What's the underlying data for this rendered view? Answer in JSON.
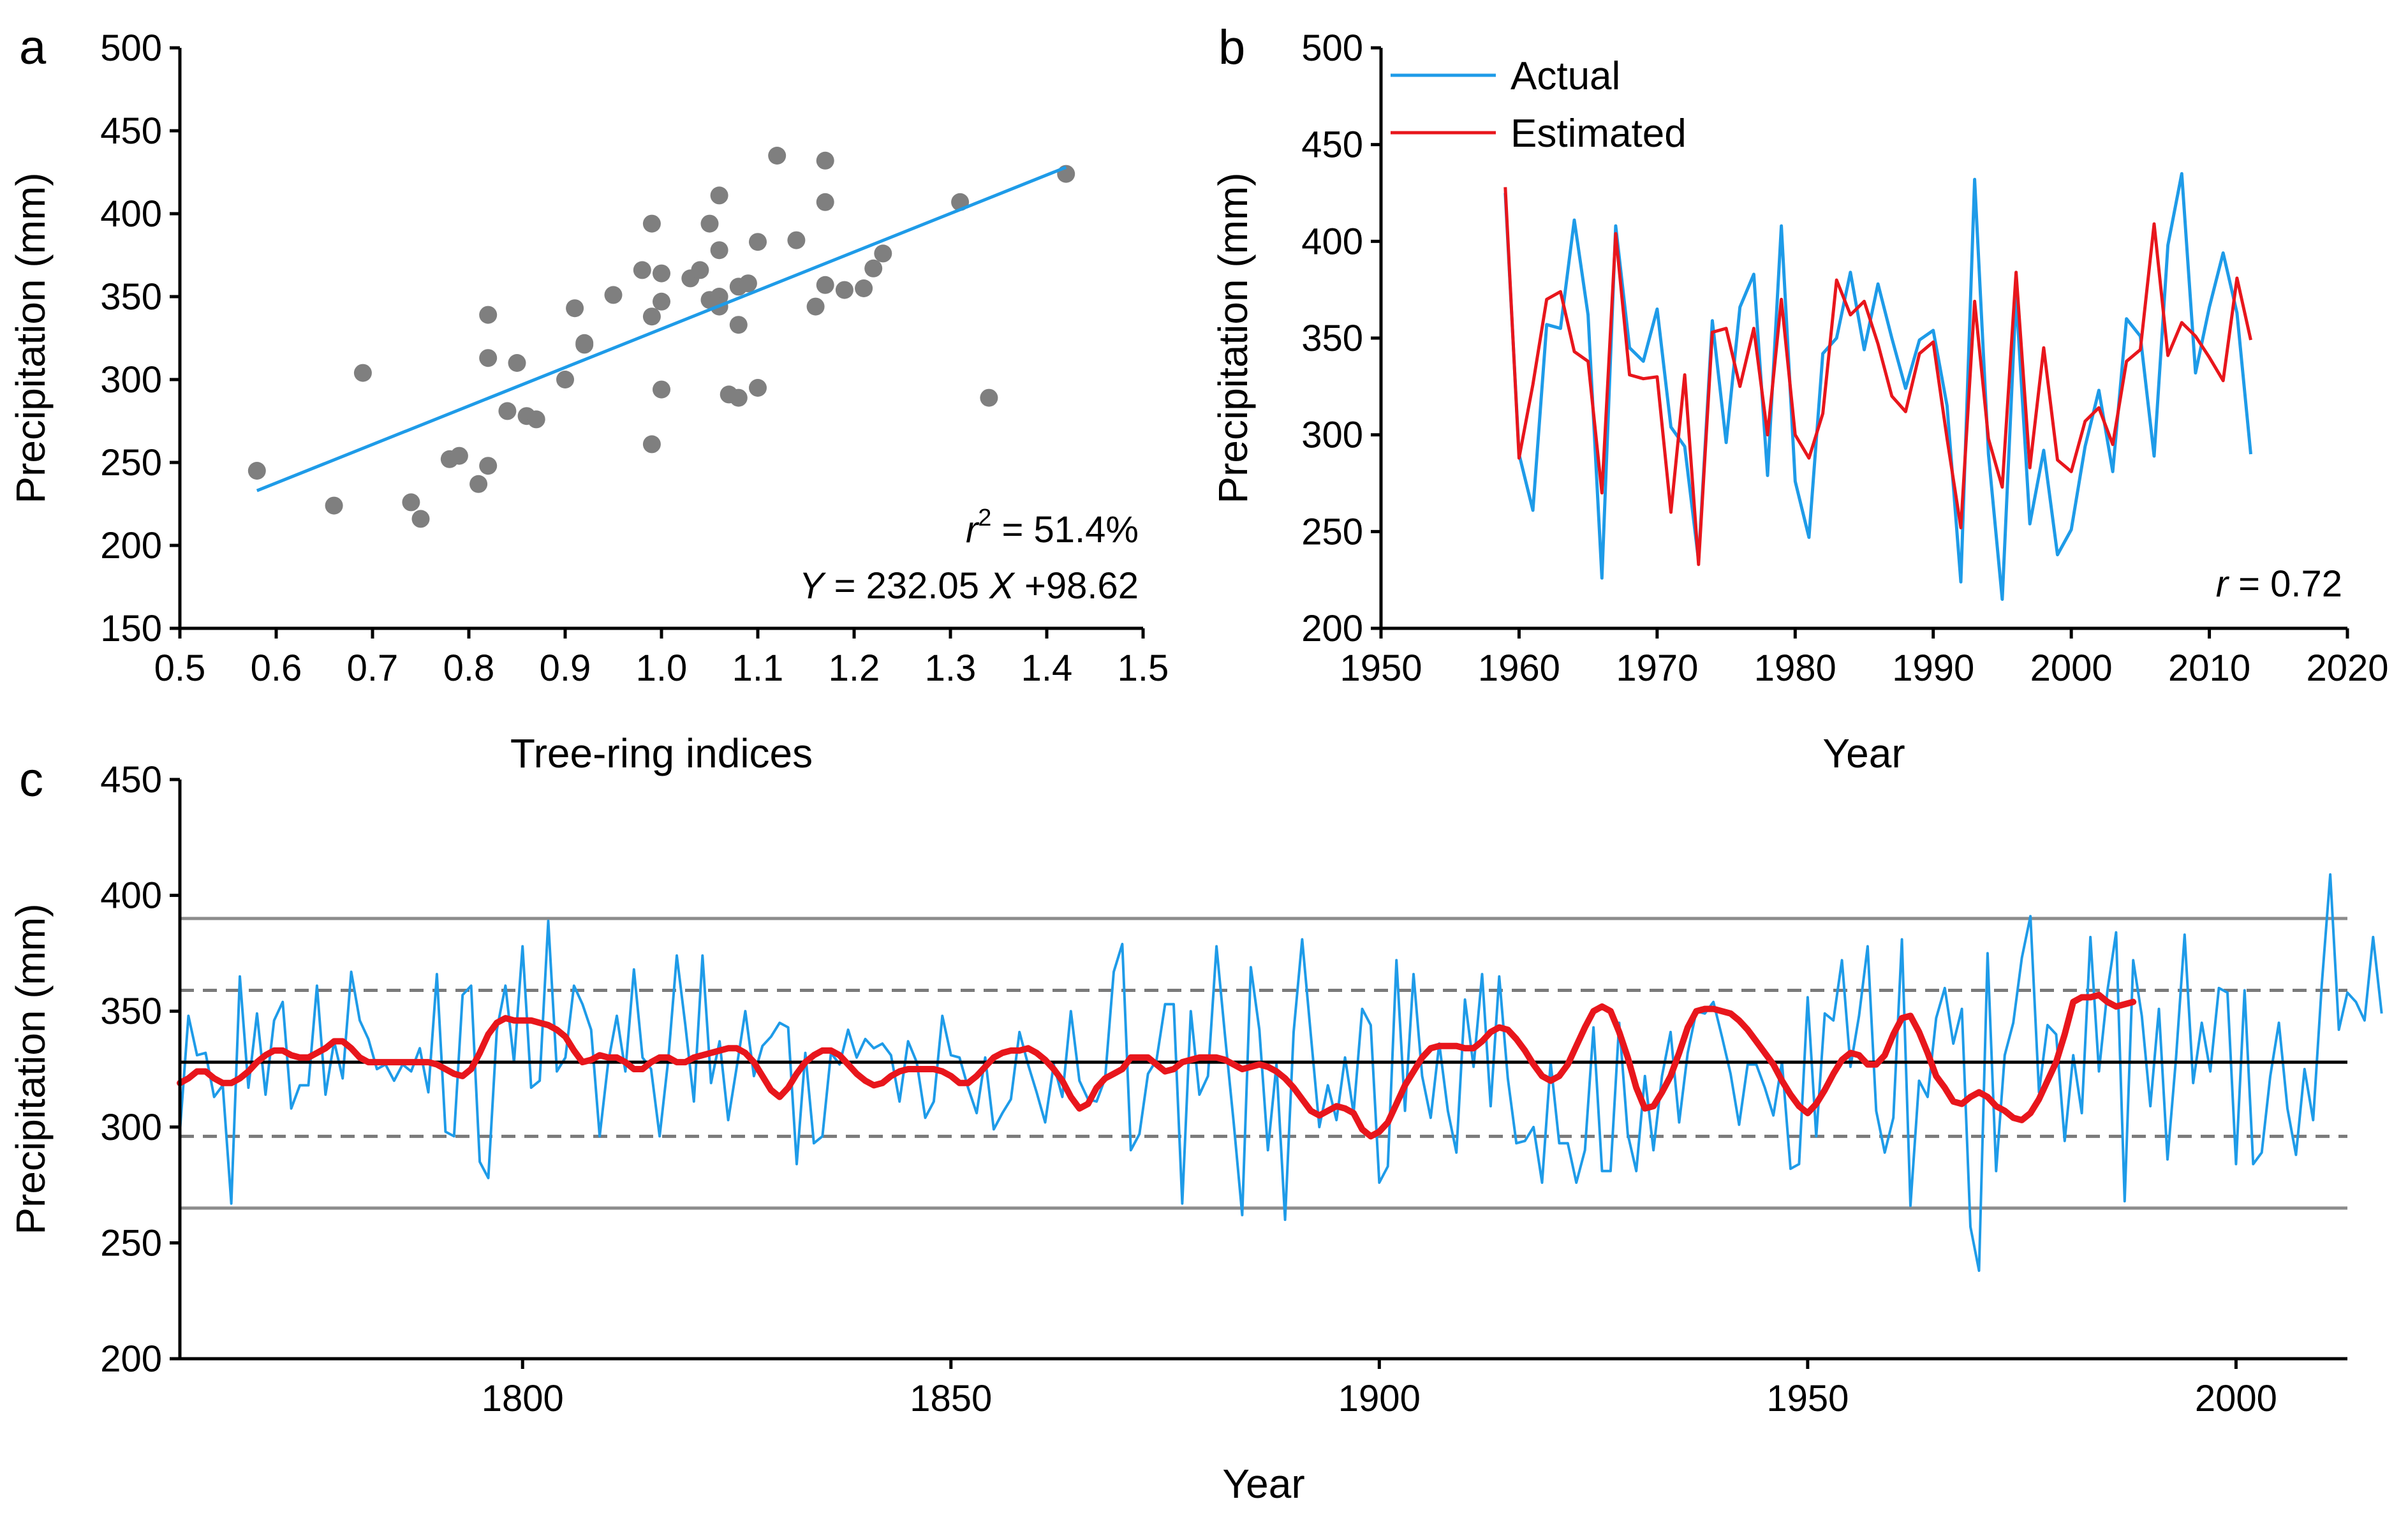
{
  "colors": {
    "actual": "#1E9BE8",
    "estimated": "#E8161C",
    "scatter": "#7F7F7F",
    "axis": "#000000",
    "ref_solid": "#8C8C8C",
    "ref_dashed": "#7A7A7A",
    "mean": "#000000"
  },
  "panels": {
    "a": {
      "letter": "a",
      "xlabel": "Tree-ring indices",
      "ylabel": "Precipitation (mm)",
      "r2_label": "r",
      "r2_sup": "2",
      "r2_value": " = 51.4%",
      "eq_y": "Y",
      "eq_mid": " = 232.05 ",
      "eq_x": "X",
      "eq_end": " +98.62"
    },
    "b": {
      "letter": "b",
      "xlabel": "Year",
      "ylabel": "Precipitation (mm)",
      "r_label": "r",
      "r_value": " = 0.72",
      "legend_actual": "Actual",
      "legend_estimated": "Estimated"
    },
    "c": {
      "letter": "c",
      "xlabel": "Year",
      "ylabel": "Precipitation (mm)"
    }
  },
  "chart_data": [
    {
      "id": "a",
      "type": "scatter",
      "xlabel": "Tree-ring indices",
      "ylabel": "Precipitation (mm)",
      "xlim": [
        0.5,
        1.5
      ],
      "ylim": [
        150,
        500
      ],
      "xticks": [
        "0.5",
        "0.6",
        "0.7",
        "0.8",
        "0.9",
        "1.0",
        "1.1",
        "1.2",
        "1.3",
        "1.4",
        "1.5"
      ],
      "yticks": [
        "150",
        "200",
        "250",
        "300",
        "350",
        "400",
        "450",
        "500"
      ],
      "points": [
        [
          0.58,
          245
        ],
        [
          0.66,
          224
        ],
        [
          0.69,
          304
        ],
        [
          0.74,
          226
        ],
        [
          0.75,
          216
        ],
        [
          0.78,
          252
        ],
        [
          0.79,
          254
        ],
        [
          0.81,
          237
        ],
        [
          0.82,
          248
        ],
        [
          0.82,
          339
        ],
        [
          0.82,
          313
        ],
        [
          0.84,
          281
        ],
        [
          0.85,
          310
        ],
        [
          0.86,
          278
        ],
        [
          0.87,
          276
        ],
        [
          0.9,
          300
        ],
        [
          0.91,
          343
        ],
        [
          0.92,
          321
        ],
        [
          0.92,
          322
        ],
        [
          0.95,
          351
        ],
        [
          0.98,
          366
        ],
        [
          0.99,
          394
        ],
        [
          0.99,
          338
        ],
        [
          1.0,
          364
        ],
        [
          1.0,
          347
        ],
        [
          0.99,
          261
        ],
        [
          1.0,
          294
        ],
        [
          1.03,
          361
        ],
        [
          1.04,
          366
        ],
        [
          1.05,
          394
        ],
        [
          1.05,
          348
        ],
        [
          1.06,
          350
        ],
        [
          1.06,
          344
        ],
        [
          1.06,
          411
        ],
        [
          1.06,
          378
        ],
        [
          1.07,
          291
        ],
        [
          1.08,
          356
        ],
        [
          1.08,
          289
        ],
        [
          1.08,
          333
        ],
        [
          1.09,
          358
        ],
        [
          1.1,
          383
        ],
        [
          1.1,
          295
        ],
        [
          1.12,
          435
        ],
        [
          1.14,
          384
        ],
        [
          1.16,
          344
        ],
        [
          1.17,
          432
        ],
        [
          1.17,
          407
        ],
        [
          1.17,
          357
        ],
        [
          1.19,
          354
        ],
        [
          1.21,
          355
        ],
        [
          1.22,
          367
        ],
        [
          1.23,
          376
        ],
        [
          1.31,
          407
        ],
        [
          1.34,
          289
        ],
        [
          1.42,
          424
        ]
      ],
      "fit_line": {
        "x": [
          0.58,
          1.42
        ],
        "y": [
          233,
          428
        ]
      },
      "annotations": [
        "r2 = 51.4%",
        "Y = 232.05 X +98.62"
      ]
    },
    {
      "id": "b",
      "type": "line",
      "xlabel": "Year",
      "ylabel": "Precipitation (mm)",
      "xlim": [
        1950,
        2020
      ],
      "ylim": [
        200,
        500
      ],
      "xticks": [
        "1950",
        "1960",
        "1970",
        "1980",
        "1990",
        "2000",
        "2010",
        "2020"
      ],
      "yticks": [
        "200",
        "250",
        "300",
        "350",
        "400",
        "450",
        "500"
      ],
      "x": [
        1959,
        1960,
        1961,
        1962,
        1963,
        1964,
        1965,
        1966,
        1967,
        1968,
        1969,
        1970,
        1971,
        1972,
        1973,
        1974,
        1975,
        1976,
        1977,
        1978,
        1979,
        1980,
        1981,
        1982,
        1983,
        1984,
        1985,
        1986,
        1987,
        1988,
        1989,
        1990,
        1991,
        1992,
        1993,
        1994,
        1995,
        1996,
        1997,
        1998,
        1999,
        2000,
        2001,
        2002,
        2003,
        2004,
        2005,
        2006,
        2007,
        2008,
        2009,
        2010,
        2011,
        2012,
        2013
      ],
      "series": [
        {
          "name": "Actual",
          "values": [
            425,
            290,
            261,
            357,
            355,
            411,
            362,
            226,
            408,
            345,
            338,
            365,
            304,
            294,
            235,
            359,
            296,
            366,
            383,
            279,
            408,
            276,
            247,
            342,
            350,
            384,
            344,
            378,
            350,
            324,
            349,
            354,
            315,
            224,
            432,
            290,
            215,
            372,
            254,
            292,
            238,
            251,
            294,
            323,
            281,
            360,
            351,
            289,
            398,
            435,
            332,
            366,
            394,
            363,
            290
          ]
        },
        {
          "name": "Estimated",
          "values": [
            428,
            288,
            326,
            370,
            374,
            343,
            338,
            270,
            404,
            331,
            329,
            330,
            260,
            331,
            233,
            353,
            355,
            325,
            355,
            300,
            370,
            300,
            288,
            311,
            380,
            362,
            369,
            347,
            320,
            312,
            342,
            348,
            298,
            252,
            369,
            298,
            273,
            384,
            283,
            345,
            287,
            281,
            307,
            314,
            295,
            338,
            344,
            409,
            341,
            358,
            351,
            340,
            328,
            381,
            349
          ]
        }
      ],
      "annotations": [
        "r = 0.72"
      ],
      "legend": "top-left"
    },
    {
      "id": "c",
      "type": "line",
      "xlabel": "Year",
      "ylabel": "Precipitation (mm)",
      "xlim": [
        1760,
        2013
      ],
      "ylim": [
        200,
        450
      ],
      "xticks": [
        "1800",
        "1850",
        "1900",
        "1950",
        "2000"
      ],
      "yticks": [
        "200",
        "250",
        "300",
        "350",
        "400",
        "450"
      ],
      "start_year": 1760,
      "series": [
        {
          "name": "",
          "values": [
            298,
            348,
            331,
            332,
            313,
            318,
            267,
            365,
            317,
            349,
            314,
            346,
            354,
            308,
            318,
            318,
            361,
            314,
            337,
            321,
            367,
            346,
            338,
            325,
            327,
            320,
            327,
            324,
            334,
            315,
            366,
            298,
            296,
            357,
            361,
            285,
            278,
            342,
            361,
            328,
            378,
            317,
            320,
            389,
            324,
            330,
            361,
            353,
            342,
            296,
            328,
            348,
            324,
            368,
            330,
            325,
            296,
            329,
            374,
            344,
            311,
            374,
            319,
            337,
            303,
            326,
            350,
            322,
            335,
            339,
            345,
            343,
            284,
            332,
            293,
            296,
            332,
            327,
            342,
            330,
            338,
            334,
            336,
            331,
            311,
            337,
            328,
            304,
            311,
            348,
            331,
            330,
            317,
            306,
            330,
            299,
            306,
            312,
            341,
            327,
            315,
            302,
            327,
            313,
            350,
            320,
            312,
            311,
            321,
            367,
            379,
            290,
            297,
            323,
            329,
            353,
            353,
            267,
            350,
            314,
            322,
            378,
            339,
            302,
            262,
            369,
            342,
            290,
            327,
            260,
            341,
            381,
            340,
            300,
            318,
            303,
            330,
            306,
            351,
            344,
            276,
            283,
            372,
            307,
            366,
            322,
            304,
            336,
            307,
            289,
            355,
            326,
            366,
            309,
            365,
            321,
            293,
            294,
            300,
            276,
            328,
            293,
            293,
            276,
            290,
            343,
            281,
            281,
            345,
            297,
            281,
            322,
            290,
            322,
            341,
            302,
            332,
            350,
            349,
            354,
            339,
            323,
            301,
            327,
            327,
            317,
            305,
            328,
            282,
            284,
            356,
            296,
            349,
            346,
            372,
            326,
            348,
            378,
            307,
            289,
            304,
            381,
            266,
            320,
            313,
            347,
            360,
            336,
            351,
            257,
            238,
            375,
            281,
            331,
            345,
            373,
            391,
            315,
            344,
            340,
            294,
            331,
            306,
            382,
            324,
            359,
            384,
            268,
            372,
            348,
            309,
            351,
            286,
            330,
            383,
            319,
            345,
            324,
            360,
            358,
            284,
            359,
            284,
            289,
            322,
            345,
            308,
            288,
            325,
            303,
            361,
            409,
            342,
            358,
            354,
            346,
            382,
            349
          ]
        },
        {
          "name": "",
          "values": [
            319,
            321,
            324,
            324,
            321,
            319,
            319,
            321,
            324,
            328,
            331,
            333,
            333,
            331,
            330,
            330,
            332,
            334,
            337,
            337,
            334,
            330,
            328,
            328,
            328,
            328,
            328,
            328,
            328,
            328,
            327,
            325,
            323,
            322,
            325,
            332,
            340,
            345,
            347,
            346,
            346,
            346,
            345,
            344,
            342,
            339,
            333,
            328,
            329,
            331,
            330,
            330,
            328,
            325,
            325,
            328,
            330,
            330,
            328,
            328,
            330,
            331,
            332,
            333,
            334,
            334,
            332,
            328,
            322,
            316,
            313,
            317,
            323,
            328,
            331,
            333,
            333,
            331,
            327,
            323,
            320,
            318,
            319,
            322,
            324,
            325,
            325,
            325,
            325,
            324,
            322,
            319,
            319,
            322,
            326,
            330,
            332,
            333,
            333,
            334,
            332,
            329,
            325,
            320,
            313,
            308,
            310,
            317,
            321,
            323,
            325,
            330,
            330,
            330,
            327,
            324,
            325,
            328,
            329,
            330,
            330,
            330,
            329,
            327,
            325,
            326,
            327,
            326,
            324,
            321,
            317,
            312,
            307,
            305,
            307,
            309,
            308,
            306,
            299,
            296,
            298,
            302,
            310,
            318,
            324,
            330,
            334,
            335,
            335,
            335,
            334,
            334,
            337,
            341,
            343,
            342,
            338,
            333,
            327,
            322,
            320,
            322,
            327,
            335,
            343,
            350,
            352,
            350,
            341,
            330,
            317,
            308,
            309,
            315,
            322,
            332,
            343,
            350,
            351,
            351,
            350,
            349,
            346,
            342,
            337,
            332,
            327,
            320,
            314,
            309,
            306,
            310,
            316,
            323,
            329,
            332,
            331,
            327,
            327,
            331,
            340,
            347,
            348,
            341,
            332,
            322,
            317,
            311,
            310,
            313,
            315,
            313,
            309,
            307,
            304,
            303,
            306,
            312,
            320,
            328,
            340,
            354,
            356,
            356,
            357,
            354,
            352,
            353,
            354
          ]
        }
      ],
      "reference_lines": {
        "mean": 328,
        "dashed": [
          359,
          296
        ],
        "solid": [
          390,
          265
        ]
      }
    }
  ]
}
